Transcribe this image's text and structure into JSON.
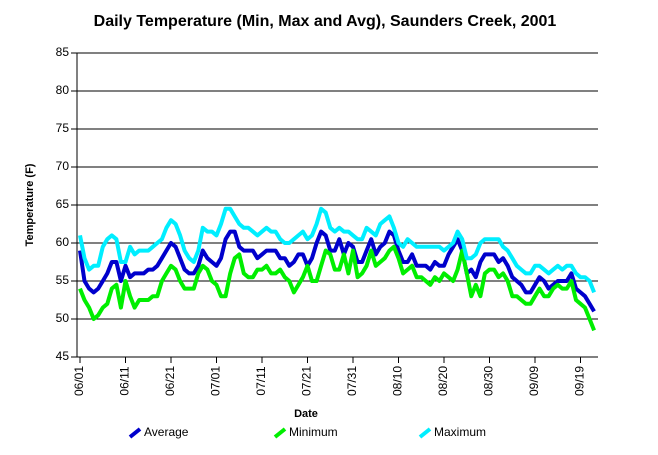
{
  "chart_data": {
    "type": "line",
    "title": "Daily Temperature (Min, Max and Avg), Saunders Creek, 2001",
    "x_label": "Date",
    "y_label": "Temperature (F)",
    "categories": [
      "06/01",
      null,
      null,
      null,
      null,
      null,
      null,
      null,
      null,
      null,
      "06/11",
      null,
      null,
      null,
      null,
      null,
      null,
      null,
      null,
      null,
      "06/21",
      null,
      null,
      null,
      null,
      null,
      null,
      null,
      null,
      null,
      "07/01",
      null,
      null,
      null,
      null,
      null,
      null,
      null,
      null,
      null,
      "07/11",
      null,
      null,
      null,
      null,
      null,
      null,
      null,
      null,
      null,
      "07/21",
      null,
      null,
      null,
      null,
      null,
      null,
      null,
      null,
      null,
      "07/31",
      null,
      null,
      null,
      null,
      null,
      null,
      null,
      null,
      null,
      "08/10",
      null,
      null,
      null,
      null,
      null,
      null,
      null,
      null,
      null,
      "08/20",
      null,
      null,
      null,
      null,
      null,
      null,
      null,
      null,
      null,
      "08/30",
      null,
      null,
      null,
      null,
      null,
      null,
      null,
      null,
      null,
      "09/09",
      null,
      null,
      null,
      null,
      null,
      null,
      null,
      null,
      null,
      "09/19",
      null,
      null,
      null
    ],
    "series": [
      {
        "name": "Average",
        "color": "#0000cc",
        "values": [
          59,
          55,
          54,
          53.5,
          54,
          55,
          56,
          57.5,
          57.5,
          55,
          57,
          55.5,
          56,
          56,
          56,
          56.5,
          56.5,
          57,
          58,
          59,
          60,
          59.5,
          58,
          56.5,
          56,
          56,
          57,
          59,
          58,
          57.5,
          57,
          58,
          60.5,
          61.5,
          61.5,
          59.5,
          59,
          59,
          59,
          58,
          58.5,
          59,
          59,
          59,
          58,
          58,
          57,
          57.5,
          58.5,
          58.5,
          57,
          58,
          60,
          61.5,
          61,
          59,
          59,
          60.5,
          58.5,
          60,
          59.5,
          57.5,
          57.5,
          59,
          60.5,
          58.5,
          59.5,
          60,
          61.5,
          61,
          59,
          57.5,
          57.5,
          58.5,
          57,
          57,
          57,
          56.5,
          57.5,
          57,
          57,
          58.5,
          59.5,
          60.5,
          59,
          56,
          56.5,
          55.5,
          57.5,
          58.5,
          58.5,
          58.5,
          57.5,
          58,
          57,
          55.5,
          55,
          54.5,
          53.5,
          53.5,
          54.5,
          55.5,
          55,
          54,
          54.5,
          55,
          55,
          55,
          56,
          54,
          53.5,
          53,
          52,
          51
        ]
      },
      {
        "name": "Minimum",
        "color": "#00ee00",
        "values": [
          54,
          52.5,
          51.5,
          50,
          50.5,
          51.5,
          52,
          54,
          54.5,
          51.5,
          55,
          53,
          51.5,
          52.5,
          52.5,
          52.5,
          53,
          53,
          55,
          56,
          57,
          56.5,
          55,
          54,
          54,
          54,
          56,
          57,
          56.5,
          55,
          54.5,
          53,
          53,
          56,
          58,
          58.5,
          56,
          55.5,
          55.5,
          56.5,
          56.5,
          57,
          56,
          56,
          56.5,
          55.5,
          55,
          53.5,
          54.5,
          55.5,
          57,
          55,
          55,
          57,
          59,
          58.5,
          56.5,
          56.5,
          58.5,
          56,
          59,
          55.5,
          56,
          57,
          59,
          57,
          57.5,
          58,
          59,
          59.5,
          58,
          56,
          56.5,
          57,
          55.5,
          55.5,
          55,
          54.5,
          55.5,
          55,
          56,
          55.5,
          55,
          56.5,
          59,
          56,
          53,
          54.5,
          53,
          56,
          56.5,
          56.5,
          55.5,
          56,
          55,
          53,
          53,
          52.5,
          52,
          52,
          53,
          54,
          53,
          53,
          54,
          54.5,
          54,
          54,
          55,
          52.5,
          52,
          51.5,
          50,
          48.5
        ]
      },
      {
        "name": "Maximum",
        "color": "#00eeff",
        "values": [
          61,
          58,
          56.5,
          57,
          57,
          59.5,
          60.5,
          61,
          60.5,
          57.5,
          57.5,
          59.5,
          58.5,
          59,
          59,
          59,
          59.5,
          60,
          60.5,
          62,
          63,
          62.5,
          61,
          59,
          58,
          57.5,
          59,
          62,
          61.5,
          61.5,
          61,
          62.5,
          64.5,
          64.5,
          63.5,
          62.5,
          62,
          62,
          61.5,
          61,
          61.5,
          62,
          61.5,
          61.5,
          60.5,
          60,
          60,
          60.5,
          61,
          61.5,
          60.5,
          61,
          62.5,
          64.5,
          64,
          62,
          61.5,
          62,
          61.5,
          61.5,
          61,
          60.5,
          60.5,
          62,
          61.5,
          61,
          62.5,
          63,
          63.5,
          62,
          60,
          59.5,
          60.5,
          60,
          59.5,
          59.5,
          59.5,
          59.5,
          59.5,
          59.5,
          59,
          59.5,
          60,
          61.5,
          60.5,
          58,
          58,
          58.5,
          60,
          60.5,
          60.5,
          60.5,
          60.5,
          59.5,
          59,
          58,
          57,
          56.5,
          56,
          56,
          57,
          57,
          56.5,
          56,
          56.5,
          57,
          56.5,
          57,
          57,
          56,
          55.5,
          55.5,
          55,
          53.5
        ]
      }
    ],
    "ylim": [
      45,
      85
    ],
    "yticks": [
      45,
      50,
      55,
      60,
      65,
      70,
      75,
      80,
      85
    ],
    "grid": true,
    "legend": "bottom"
  }
}
